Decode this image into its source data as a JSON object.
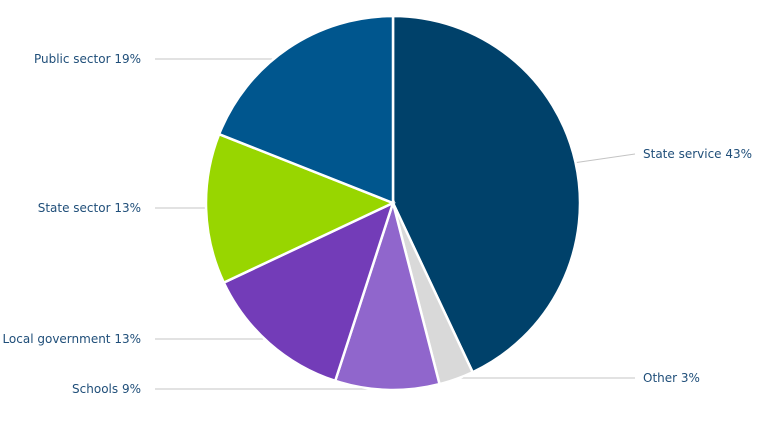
{
  "chart_data": {
    "type": "pie",
    "title": "",
    "slices": [
      {
        "label": "State service 43%",
        "value": 43,
        "color": "#00416a"
      },
      {
        "label": "Other 3%",
        "value": 3,
        "color": "#d9d9d9"
      },
      {
        "label": "Schools 9%",
        "value": 9,
        "color": "#9066cc"
      },
      {
        "label": "Local government 13%",
        "value": 13,
        "color": "#733cb8"
      },
      {
        "label": "State sector 13%",
        "value": 13,
        "color": "#98d600"
      },
      {
        "label": "Public sector 19%",
        "value": 19,
        "color": "#00568e"
      }
    ]
  }
}
